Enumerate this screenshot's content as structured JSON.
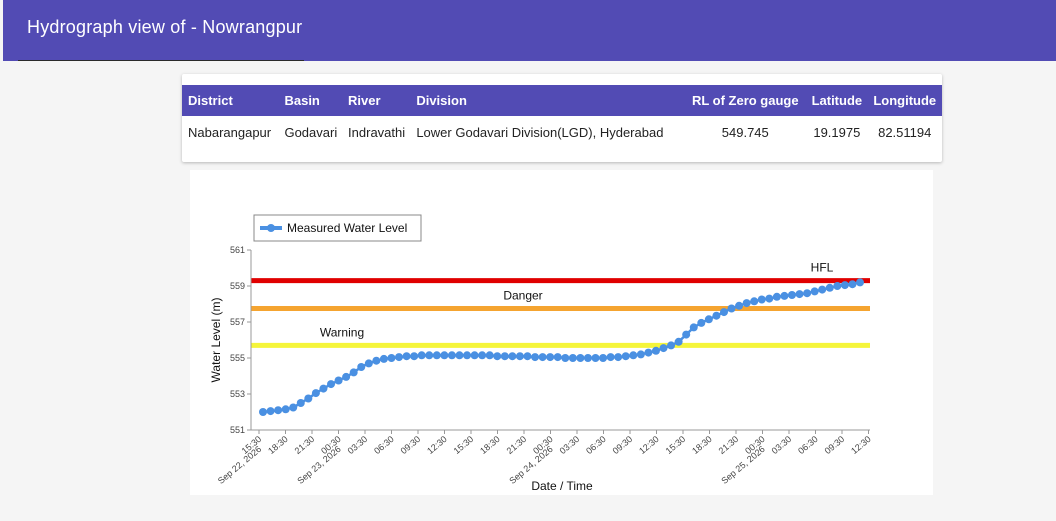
{
  "header": {
    "title": "Hydrograph view of - Nowrangpur"
  },
  "station_table": {
    "columns": [
      "District",
      "Basin",
      "River",
      "Division",
      "RL of Zero gauge",
      "Latitude",
      "Longitude"
    ],
    "row": [
      "Nabarangapur",
      "Godavari",
      "Indravathi",
      "Lower Godavari Division(LGD), Hyderabad",
      "549.745",
      "19.1975",
      "82.51194"
    ]
  },
  "colors": {
    "accent": "#524bb4",
    "series": "#4a90e2",
    "hfl": "#e00000",
    "danger": "#f5a430",
    "warning": "#f5f53a"
  },
  "chart_data": {
    "type": "line",
    "xlabel": "Date / Time",
    "ylabel": "Water Level (m)",
    "ylim": [
      551,
      561
    ],
    "y_ticks": [
      "551",
      "553",
      "555",
      "557",
      "559",
      "561"
    ],
    "x_ticks": [
      "15:30",
      "18:30",
      "21:30",
      "00:30",
      "03:30",
      "06:30",
      "09:30",
      "12:30",
      "15:30",
      "18:30",
      "21:30",
      "00:30",
      "03:30",
      "06:30",
      "09:30",
      "12:30",
      "15:30",
      "18:30",
      "21:30",
      "00:30",
      "03:30",
      "06:30",
      "09:30",
      "12:30"
    ],
    "date_labels": [
      {
        "text": "Sep 22, 2026",
        "tick_index": 0
      },
      {
        "text": "Sep 23, 2026",
        "tick_index": 3
      },
      {
        "text": "Sep 24, 2026",
        "tick_index": 11
      },
      {
        "text": "Sep 25, 2026",
        "tick_index": 19
      }
    ],
    "legend": {
      "label": "Measured Water Level",
      "position": "top-left"
    },
    "reference_lines": [
      {
        "name": "HFL",
        "value": 559.3,
        "color": "#e00000"
      },
      {
        "name": "Danger",
        "value": 557.75,
        "color": "#f5a430"
      },
      {
        "name": "Warning",
        "value": 555.7,
        "color": "#f5f53a"
      }
    ],
    "series": [
      {
        "values": [
          552.0,
          552.05,
          552.1,
          552.15,
          552.25,
          552.5,
          552.75,
          553.05,
          553.3,
          553.55,
          553.75,
          553.95,
          554.2,
          554.5,
          554.7,
          554.85,
          554.95,
          555.0,
          555.05,
          555.1,
          555.1,
          555.15,
          555.15,
          555.15,
          555.15,
          555.15,
          555.15,
          555.15,
          555.15,
          555.15,
          555.15,
          555.1,
          555.1,
          555.1,
          555.1,
          555.1,
          555.05,
          555.05,
          555.05,
          555.05,
          555.0,
          555.0,
          555.0,
          555.0,
          555.0,
          555.0,
          555.05,
          555.05,
          555.1,
          555.15,
          555.2,
          555.3,
          555.4,
          555.55,
          555.7,
          555.9,
          556.3,
          556.7,
          556.95,
          557.15,
          557.35,
          557.55,
          557.75,
          557.9,
          558.05,
          558.15,
          558.25,
          558.3,
          558.4,
          558.45,
          558.5,
          558.55,
          558.6,
          558.7,
          558.8,
          558.9,
          559.0,
          559.05,
          559.1,
          559.2
        ]
      }
    ]
  }
}
